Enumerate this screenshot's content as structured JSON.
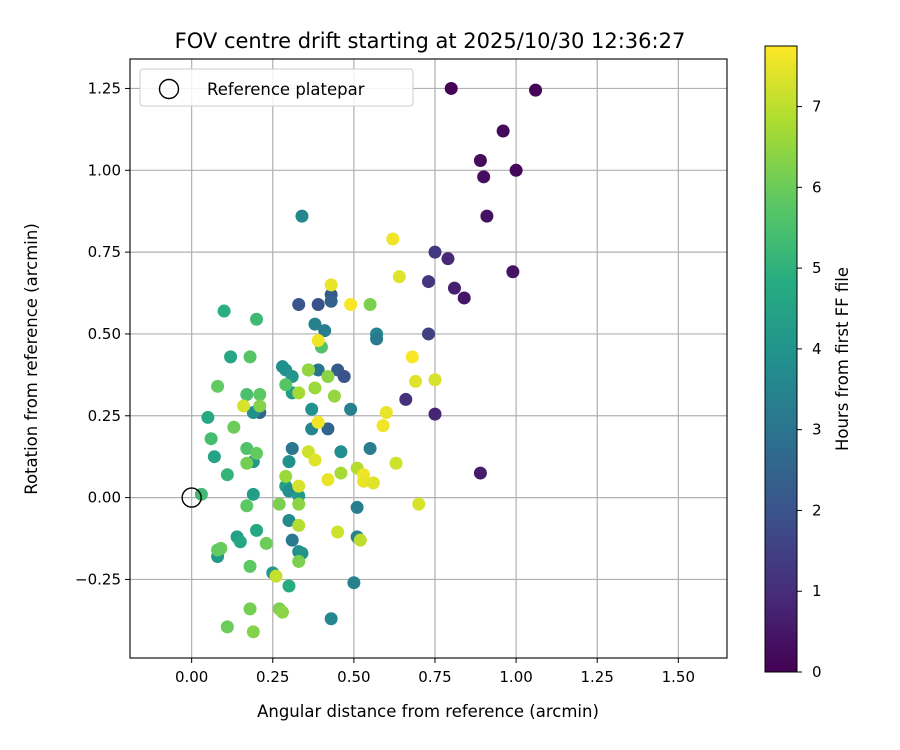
{
  "chart_data": {
    "type": "scatter",
    "title": "FOV centre drift starting at 2025/10/30 12:36:27",
    "xlabel": "Angular distance from reference (arcmin)",
    "ylabel": "Rotation from reference (arcmin)",
    "xlim": [
      -0.19,
      1.65
    ],
    "ylim": [
      -0.49,
      1.34
    ],
    "xticks": [
      0.0,
      0.25,
      0.5,
      0.75,
      1.0,
      1.25,
      1.5
    ],
    "xtick_labels": [
      "0.00",
      "0.25",
      "0.50",
      "0.75",
      "1.00",
      "1.25",
      "1.50"
    ],
    "yticks": [
      -0.25,
      0.0,
      0.25,
      0.5,
      0.75,
      1.0,
      1.25
    ],
    "ytick_labels": [
      "−0.25",
      "0.00",
      "0.25",
      "0.50",
      "0.75",
      "1.00",
      "1.25"
    ],
    "grid": true,
    "legend": {
      "placement": "top-left",
      "entries": [
        {
          "label": "Reference platepar",
          "marker": "open-circle"
        }
      ]
    },
    "reference_point": {
      "x": 0.0,
      "y": 0.0
    },
    "colorbar": {
      "label": "Hours from first FF file",
      "colormap": "viridis",
      "range": [
        0,
        7.75
      ],
      "ticks": [
        0,
        1,
        2,
        3,
        4,
        5,
        6,
        7
      ],
      "tick_labels": [
        "0",
        "1",
        "2",
        "3",
        "4",
        "5",
        "6",
        "7"
      ]
    },
    "points": [
      {
        "x": 0.8,
        "y": 1.25,
        "t": 0.05
      },
      {
        "x": 1.06,
        "y": 1.245,
        "t": 0.1
      },
      {
        "x": 0.96,
        "y": 1.12,
        "t": 0.2
      },
      {
        "x": 0.89,
        "y": 1.03,
        "t": 0.25
      },
      {
        "x": 0.9,
        "y": 0.98,
        "t": 0.3
      },
      {
        "x": 1.0,
        "y": 1.0,
        "t": 0.15
      },
      {
        "x": 0.91,
        "y": 0.86,
        "t": 0.35
      },
      {
        "x": 0.99,
        "y": 0.69,
        "t": 0.4
      },
      {
        "x": 0.84,
        "y": 0.61,
        "t": 0.45
      },
      {
        "x": 0.81,
        "y": 0.64,
        "t": 0.7
      },
      {
        "x": 0.79,
        "y": 0.73,
        "t": 0.9
      },
      {
        "x": 0.75,
        "y": 0.75,
        "t": 1.3
      },
      {
        "x": 0.73,
        "y": 0.66,
        "t": 1.2
      },
      {
        "x": 0.73,
        "y": 0.5,
        "t": 1.5
      },
      {
        "x": 0.66,
        "y": 0.3,
        "t": 1.1
      },
      {
        "x": 0.75,
        "y": 0.255,
        "t": 0.8
      },
      {
        "x": 0.89,
        "y": 0.075,
        "t": 0.6
      },
      {
        "x": 0.33,
        "y": 0.59,
        "t": 2.1
      },
      {
        "x": 0.39,
        "y": 0.59,
        "t": 2.0
      },
      {
        "x": 0.43,
        "y": 0.62,
        "t": 2.2
      },
      {
        "x": 0.43,
        "y": 0.6,
        "t": 2.4
      },
      {
        "x": 0.45,
        "y": 0.39,
        "t": 2.3
      },
      {
        "x": 0.47,
        "y": 0.37,
        "t": 2.0
      },
      {
        "x": 0.42,
        "y": 0.21,
        "t": 2.5
      },
      {
        "x": 0.21,
        "y": 0.26,
        "t": 2.6
      },
      {
        "x": 0.34,
        "y": 0.86,
        "t": 3.6
      },
      {
        "x": 0.38,
        "y": 0.53,
        "t": 3.4
      },
      {
        "x": 0.41,
        "y": 0.51,
        "t": 3.3
      },
      {
        "x": 0.57,
        "y": 0.5,
        "t": 3.5
      },
      {
        "x": 0.57,
        "y": 0.485,
        "t": 3.2
      },
      {
        "x": 0.36,
        "y": 0.39,
        "t": 3.7
      },
      {
        "x": 0.39,
        "y": 0.39,
        "t": 3.0
      },
      {
        "x": 0.28,
        "y": 0.4,
        "t": 3.8
      },
      {
        "x": 0.29,
        "y": 0.39,
        "t": 3.9
      },
      {
        "x": 0.31,
        "y": 0.37,
        "t": 4.1
      },
      {
        "x": 0.31,
        "y": 0.32,
        "t": 4.3
      },
      {
        "x": 0.37,
        "y": 0.27,
        "t": 3.9
      },
      {
        "x": 0.49,
        "y": 0.27,
        "t": 3.4
      },
      {
        "x": 0.37,
        "y": 0.21,
        "t": 3.6
      },
      {
        "x": 0.46,
        "y": 0.14,
        "t": 3.8
      },
      {
        "x": 0.55,
        "y": 0.15,
        "t": 3.3
      },
      {
        "x": 0.31,
        "y": 0.15,
        "t": 3.1
      },
      {
        "x": 0.3,
        "y": 0.11,
        "t": 3.9
      },
      {
        "x": 0.19,
        "y": 0.26,
        "t": 3.9
      },
      {
        "x": 0.19,
        "y": 0.11,
        "t": 4.1
      },
      {
        "x": 0.19,
        "y": 0.01,
        "t": 4.3
      },
      {
        "x": 0.07,
        "y": 0.125,
        "t": 4.5
      },
      {
        "x": 0.29,
        "y": 0.035,
        "t": 4.4
      },
      {
        "x": 0.3,
        "y": 0.02,
        "t": 3.8
      },
      {
        "x": 0.33,
        "y": 0.005,
        "t": 4.2
      },
      {
        "x": 0.51,
        "y": -0.03,
        "t": 3.3
      },
      {
        "x": 0.3,
        "y": -0.07,
        "t": 3.7
      },
      {
        "x": 0.51,
        "y": -0.12,
        "t": 3.5
      },
      {
        "x": 0.31,
        "y": -0.13,
        "t": 3.2
      },
      {
        "x": 0.33,
        "y": -0.165,
        "t": 3.8
      },
      {
        "x": 0.34,
        "y": -0.17,
        "t": 4.0
      },
      {
        "x": 0.08,
        "y": -0.18,
        "t": 4.2
      },
      {
        "x": 0.14,
        "y": -0.12,
        "t": 4.4
      },
      {
        "x": 0.15,
        "y": -0.135,
        "t": 4.6
      },
      {
        "x": 0.2,
        "y": -0.1,
        "t": 4.7
      },
      {
        "x": 0.25,
        "y": -0.23,
        "t": 4.2
      },
      {
        "x": 0.3,
        "y": -0.27,
        "t": 4.8
      },
      {
        "x": 0.5,
        "y": -0.26,
        "t": 3.4
      },
      {
        "x": 0.43,
        "y": -0.37,
        "t": 3.6
      },
      {
        "x": 0.12,
        "y": 0.43,
        "t": 4.6
      },
      {
        "x": 0.1,
        "y": 0.57,
        "t": 4.9
      },
      {
        "x": 0.05,
        "y": 0.245,
        "t": 4.7
      },
      {
        "x": 0.11,
        "y": 0.07,
        "t": 5.1
      },
      {
        "x": 0.2,
        "y": 0.545,
        "t": 5.3
      },
      {
        "x": 0.4,
        "y": 0.46,
        "t": 5.6
      },
      {
        "x": 0.18,
        "y": 0.43,
        "t": 5.7
      },
      {
        "x": 0.17,
        "y": 0.315,
        "t": 5.5
      },
      {
        "x": 0.21,
        "y": 0.315,
        "t": 5.8
      },
      {
        "x": 0.08,
        "y": 0.34,
        "t": 5.9
      },
      {
        "x": 0.13,
        "y": 0.215,
        "t": 6.0
      },
      {
        "x": 0.06,
        "y": 0.18,
        "t": 5.4
      },
      {
        "x": 0.17,
        "y": 0.15,
        "t": 5.6
      },
      {
        "x": 0.2,
        "y": 0.135,
        "t": 5.9
      },
      {
        "x": 0.17,
        "y": 0.105,
        "t": 6.1
      },
      {
        "x": 0.03,
        "y": 0.01,
        "t": 5.3
      },
      {
        "x": 0.17,
        "y": -0.025,
        "t": 5.8
      },
      {
        "x": 0.09,
        "y": -0.155,
        "t": 6.0
      },
      {
        "x": 0.08,
        "y": -0.16,
        "t": 5.9
      },
      {
        "x": 0.23,
        "y": -0.14,
        "t": 6.0
      },
      {
        "x": 0.18,
        "y": -0.21,
        "t": 5.8
      },
      {
        "x": 0.33,
        "y": -0.195,
        "t": 6.2
      },
      {
        "x": 0.18,
        "y": -0.34,
        "t": 6.1
      },
      {
        "x": 0.27,
        "y": -0.34,
        "t": 6.2
      },
      {
        "x": 0.28,
        "y": -0.35,
        "t": 6.4
      },
      {
        "x": 0.11,
        "y": -0.395,
        "t": 6.0
      },
      {
        "x": 0.19,
        "y": -0.41,
        "t": 6.3
      },
      {
        "x": 0.21,
        "y": 0.28,
        "t": 6.3
      },
      {
        "x": 0.55,
        "y": 0.59,
        "t": 6.2
      },
      {
        "x": 0.36,
        "y": 0.39,
        "t": 6.5
      },
      {
        "x": 0.42,
        "y": 0.37,
        "t": 6.4
      },
      {
        "x": 0.38,
        "y": 0.335,
        "t": 6.6
      },
      {
        "x": 0.29,
        "y": 0.345,
        "t": 5.7
      },
      {
        "x": 0.44,
        "y": 0.31,
        "t": 6.5
      },
      {
        "x": 0.33,
        "y": 0.32,
        "t": 6.7
      },
      {
        "x": 0.29,
        "y": 0.065,
        "t": 6.6
      },
      {
        "x": 0.27,
        "y": -0.02,
        "t": 6.2
      },
      {
        "x": 0.33,
        "y": -0.02,
        "t": 6.4
      },
      {
        "x": 0.33,
        "y": -0.085,
        "t": 6.9
      },
      {
        "x": 0.26,
        "y": -0.24,
        "t": 7.1
      },
      {
        "x": 0.46,
        "y": 0.075,
        "t": 6.7
      },
      {
        "x": 0.51,
        "y": 0.09,
        "t": 6.9
      },
      {
        "x": 0.52,
        "y": -0.13,
        "t": 7.0
      },
      {
        "x": 0.45,
        "y": -0.105,
        "t": 7.2
      },
      {
        "x": 0.16,
        "y": 0.28,
        "t": 7.3
      },
      {
        "x": 0.36,
        "y": 0.14,
        "t": 7.2
      },
      {
        "x": 0.38,
        "y": 0.115,
        "t": 7.4
      },
      {
        "x": 0.33,
        "y": 0.035,
        "t": 7.3
      },
      {
        "x": 0.42,
        "y": 0.055,
        "t": 7.5
      },
      {
        "x": 0.53,
        "y": 0.07,
        "t": 7.6
      },
      {
        "x": 0.53,
        "y": 0.05,
        "t": 7.5
      },
      {
        "x": 0.56,
        "y": 0.045,
        "t": 7.4
      },
      {
        "x": 0.7,
        "y": -0.02,
        "t": 7.3
      },
      {
        "x": 0.63,
        "y": 0.105,
        "t": 7.2
      },
      {
        "x": 0.59,
        "y": 0.22,
        "t": 7.6
      },
      {
        "x": 0.6,
        "y": 0.26,
        "t": 7.5
      },
      {
        "x": 0.69,
        "y": 0.355,
        "t": 7.4
      },
      {
        "x": 0.75,
        "y": 0.36,
        "t": 7.3
      },
      {
        "x": 0.68,
        "y": 0.43,
        "t": 7.7
      },
      {
        "x": 0.39,
        "y": 0.48,
        "t": 7.6
      },
      {
        "x": 0.49,
        "y": 0.59,
        "t": 7.7
      },
      {
        "x": 0.43,
        "y": 0.65,
        "t": 7.5
      },
      {
        "x": 0.64,
        "y": 0.675,
        "t": 7.4
      },
      {
        "x": 0.62,
        "y": 0.79,
        "t": 7.6
      },
      {
        "x": 0.39,
        "y": 0.23,
        "t": 7.6
      }
    ]
  }
}
